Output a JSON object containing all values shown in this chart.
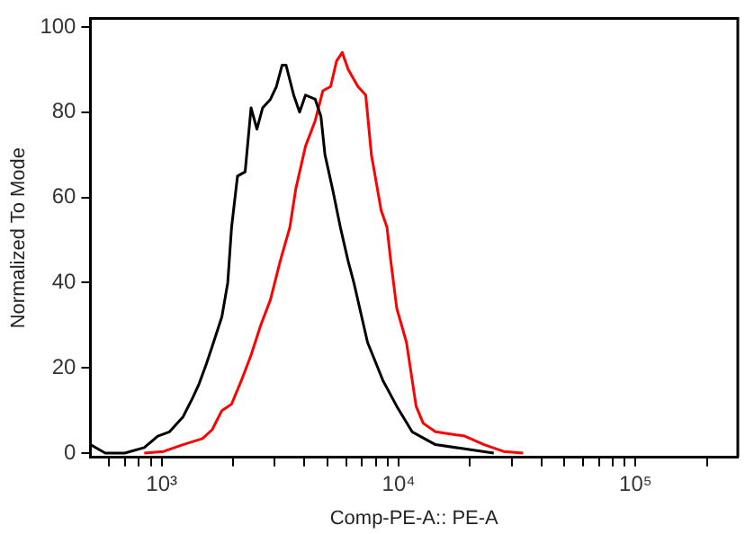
{
  "chart_data": {
    "type": "line",
    "xlabel": "Comp-PE-A:: PE-A",
    "ylabel": "Normalized To Mode",
    "log": "x",
    "legend": false,
    "marker": "none",
    "line_style": "solid",
    "xlim": [
      500,
      270000
    ],
    "ylim": [
      -1,
      102
    ],
    "xticks": [
      {
        "value": 600,
        "label": null
      },
      {
        "value": 700,
        "label": null
      },
      {
        "value": 800,
        "label": null
      },
      {
        "value": 900,
        "label": null
      },
      {
        "value": 1000,
        "label": "10³"
      },
      {
        "value": 2000,
        "label": null
      },
      {
        "value": 3000,
        "label": null
      },
      {
        "value": 4000,
        "label": null
      },
      {
        "value": 5000,
        "label": null
      },
      {
        "value": 6000,
        "label": null
      },
      {
        "value": 7000,
        "label": null
      },
      {
        "value": 8000,
        "label": null
      },
      {
        "value": 9000,
        "label": null
      },
      {
        "value": 10000,
        "label": "10⁴"
      },
      {
        "value": 20000,
        "label": null
      },
      {
        "value": 30000,
        "label": null
      },
      {
        "value": 40000,
        "label": null
      },
      {
        "value": 50000,
        "label": null
      },
      {
        "value": 60000,
        "label": null
      },
      {
        "value": 70000,
        "label": null
      },
      {
        "value": 80000,
        "label": null
      },
      {
        "value": 90000,
        "label": null
      },
      {
        "value": 100000,
        "label": "10⁵"
      },
      {
        "value": 200000,
        "label": null
      }
    ],
    "yticks": [
      0,
      20,
      40,
      60,
      80,
      100
    ],
    "series": [
      {
        "color": "#000000",
        "x": [
          500,
          578,
          698,
          844,
          963,
          1079,
          1230,
          1352,
          1432,
          1545,
          1633,
          1795,
          1900,
          1972,
          2089,
          2250,
          2383,
          2523,
          2667,
          2877,
          3048,
          3221,
          3350,
          3606,
          3819,
          4045,
          4446,
          4699,
          4887,
          5260,
          5675,
          6124,
          6471,
          7390,
          8593,
          9817,
          11400,
          14300,
          19000,
          25200
        ],
        "values": [
          2,
          0,
          0,
          1.3,
          4,
          5,
          8.5,
          13,
          16,
          21,
          25,
          32,
          40,
          53,
          65,
          66,
          81,
          76,
          81,
          83,
          86,
          91,
          91,
          84,
          80,
          84,
          83,
          79,
          70,
          62,
          53,
          45,
          40,
          26,
          17,
          11,
          5,
          2,
          1,
          0
        ]
      },
      {
        "color": "#ff0000",
        "x": [
          844,
          1019,
          1230,
          1486,
          1633,
          1795,
          1972,
          2168,
          2383,
          2618,
          2877,
          3162,
          3475,
          3681,
          4045,
          4446,
          4786,
          5164,
          5470,
          5781,
          6124,
          6730,
          7261,
          7675,
          8433,
          8928,
          9268,
          9817,
          10790,
          11850,
          12700,
          14300,
          19000,
          22950,
          27720,
          33500
        ],
        "values": [
          0,
          0.4,
          2,
          3.4,
          5.5,
          10,
          11.5,
          17,
          23,
          30,
          36,
          45,
          53,
          62,
          72,
          78,
          85,
          86,
          92,
          94,
          90,
          86,
          84,
          70,
          57,
          53,
          45,
          34,
          26,
          11,
          7,
          5,
          4,
          2,
          0.4,
          0
        ]
      }
    ]
  }
}
